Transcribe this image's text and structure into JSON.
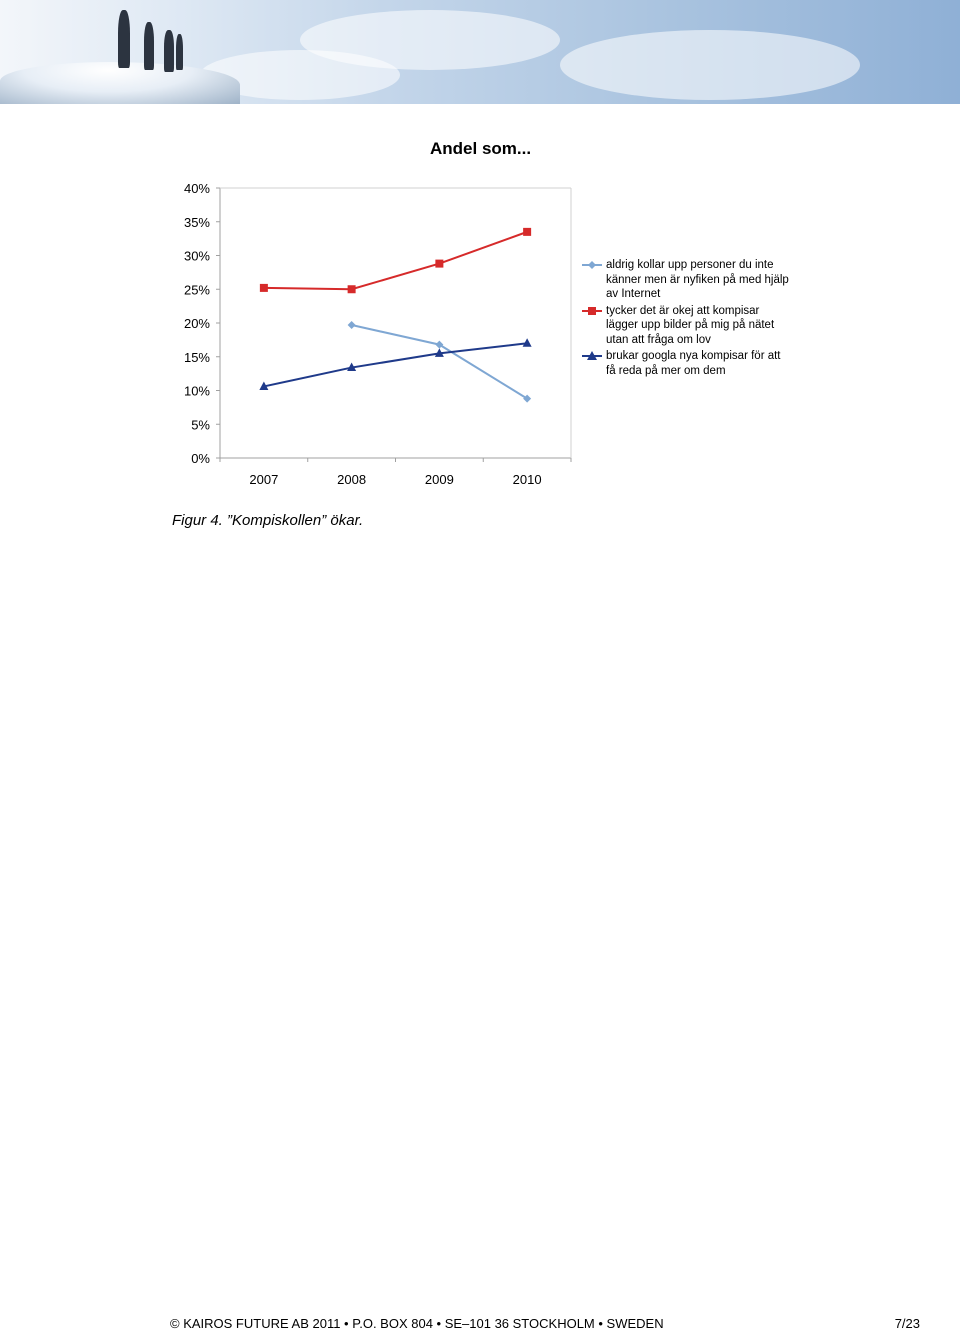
{
  "chart_data": {
    "type": "line",
    "title": "Andel som...",
    "categories": [
      "2007",
      "2008",
      "2009",
      "2010"
    ],
    "y_ticks": [
      "0%",
      "5%",
      "10%",
      "15%",
      "20%",
      "25%",
      "30%",
      "35%",
      "40%"
    ],
    "ylim": [
      0,
      40
    ],
    "y_unit": "%",
    "grid": false,
    "legend_position": "right",
    "series": [
      {
        "name": "aldrig kollar upp personer du inte känner men är nyfiken på med hjälp av Internet",
        "values": [
          null,
          19.7,
          16.8,
          8.8
        ],
        "color": "#7fa7d3",
        "marker": "diamond"
      },
      {
        "name": "tycker det är okej att kompisar lägger upp bilder på mig på nätet utan att fråga om lov",
        "values": [
          25.2,
          25.0,
          28.8,
          33.5
        ],
        "color": "#d62a2a",
        "marker": "square"
      },
      {
        "name": "brukar googla nya kompisar för att få reda på mer om dem",
        "values": [
          10.6,
          13.4,
          15.5,
          17.0
        ],
        "color": "#1f3a8a",
        "marker": "triangle"
      }
    ]
  },
  "caption": "Figur 4. ”Kompiskollen” ökar.",
  "footer": {
    "left": "© KAIROS FUTURE AB 2011 • P.O. BOX 804 • SE–101 36 STOCKHOLM • SWEDEN",
    "page": "7/23"
  }
}
